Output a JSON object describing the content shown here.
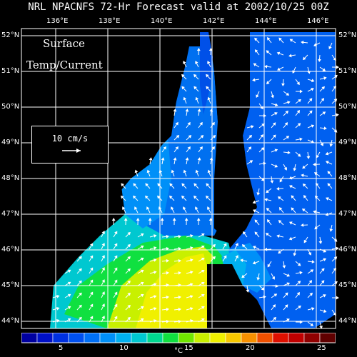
{
  "title": "NRL NPACNFS 72-Hr Forecast valid at 2002/10/25 00Z",
  "map_labels": {
    "line1": "Surface",
    "line2": "Temp/Current"
  },
  "scale_label": "10 cm/s",
  "lon_ticks": [
    "136°E",
    "138°E",
    "140°E",
    "142°E",
    "144°E",
    "146°E"
  ],
  "lat_ticks": [
    "52°N",
    "51°N",
    "50°N",
    "49°N",
    "48°N",
    "47°N",
    "46°N",
    "45°N",
    "44°N"
  ],
  "colorbar": {
    "unit": "°C",
    "tick_labels": [
      "5",
      "10",
      "15",
      "20",
      "25"
    ],
    "colors": [
      "#0000a0",
      "#0010c8",
      "#0030e0",
      "#0050f0",
      "#0070f8",
      "#0090f8",
      "#00b0f0",
      "#00c8d0",
      "#00d890",
      "#10e040",
      "#70e800",
      "#c8f000",
      "#f0f000",
      "#f8c800",
      "#f89000",
      "#f05000",
      "#e01000",
      "#c00000",
      "#900000",
      "#600000"
    ]
  },
  "colors": {
    "land": "#000000",
    "grid": "#ffffff",
    "vector": "#ffffff"
  }
}
